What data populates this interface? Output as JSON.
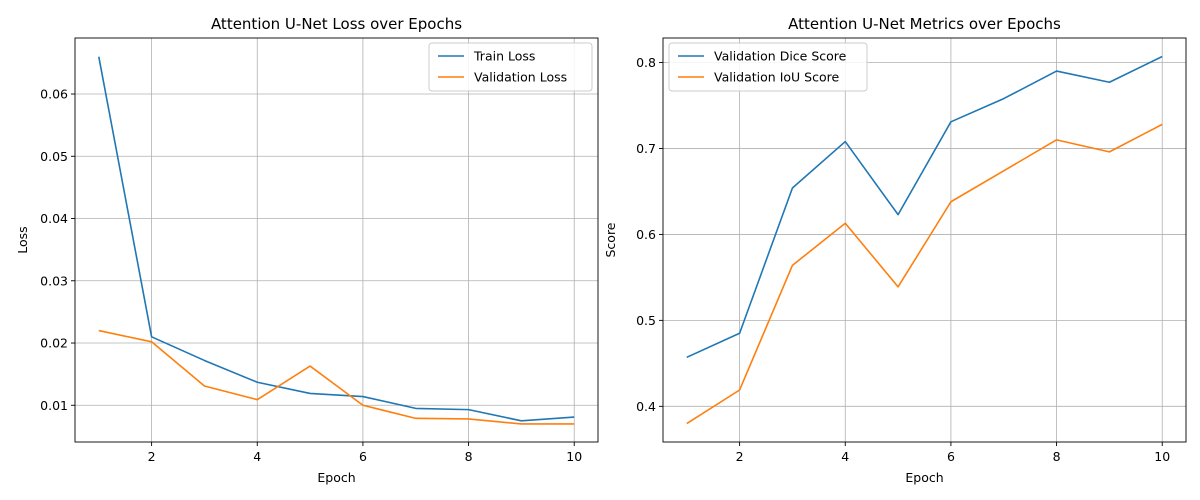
{
  "chart_data": [
    {
      "type": "line",
      "title": "Attention U-Net Loss over Epochs",
      "xlabel": "Epoch",
      "ylabel": "Loss",
      "xlim": [
        0.55,
        10.45
      ],
      "ylim": [
        0.0041,
        0.069
      ],
      "xticks": [
        2,
        4,
        6,
        8,
        10
      ],
      "yticks": [
        0.01,
        0.02,
        0.03,
        0.04,
        0.05,
        0.06
      ],
      "ytick_labels": [
        "0.01",
        "0.02",
        "0.03",
        "0.04",
        "0.05",
        "0.06"
      ],
      "grid": true,
      "legend": "upper-right",
      "x": [
        1,
        2,
        3,
        4,
        5,
        6,
        7,
        8,
        9,
        10
      ],
      "series": [
        {
          "name": "Train Loss",
          "color": "#1f77b4",
          "values": [
            0.066,
            0.021,
            0.0172,
            0.0137,
            0.0119,
            0.0114,
            0.0095,
            0.0093,
            0.0075,
            0.0081
          ]
        },
        {
          "name": "Validation Loss",
          "color": "#ff7f0e",
          "values": [
            0.022,
            0.0202,
            0.0131,
            0.0109,
            0.0163,
            0.01,
            0.0079,
            0.0078,
            0.007,
            0.007
          ]
        }
      ]
    },
    {
      "type": "line",
      "title": "Attention U-Net Metrics over Epochs",
      "xlabel": "Epoch",
      "ylabel": "Score",
      "xlim": [
        0.55,
        10.45
      ],
      "ylim": [
        0.3585,
        0.8285
      ],
      "xticks": [
        2,
        4,
        6,
        8,
        10
      ],
      "yticks": [
        0.4,
        0.5,
        0.6,
        0.7,
        0.8
      ],
      "ytick_labels": [
        "0.4",
        "0.5",
        "0.6",
        "0.7",
        "0.8"
      ],
      "grid": true,
      "legend": "upper-left",
      "x": [
        1,
        2,
        3,
        4,
        5,
        6,
        7,
        8,
        9,
        10
      ],
      "series": [
        {
          "name": "Validation Dice Score",
          "color": "#1f77b4",
          "values": [
            0.457,
            0.485,
            0.654,
            0.708,
            0.623,
            0.731,
            0.758,
            0.79,
            0.777,
            0.807
          ]
        },
        {
          "name": "Validation IoU Score",
          "color": "#ff7f0e",
          "values": [
            0.38,
            0.419,
            0.564,
            0.613,
            0.539,
            0.638,
            0.674,
            0.71,
            0.696,
            0.728
          ]
        }
      ]
    }
  ]
}
